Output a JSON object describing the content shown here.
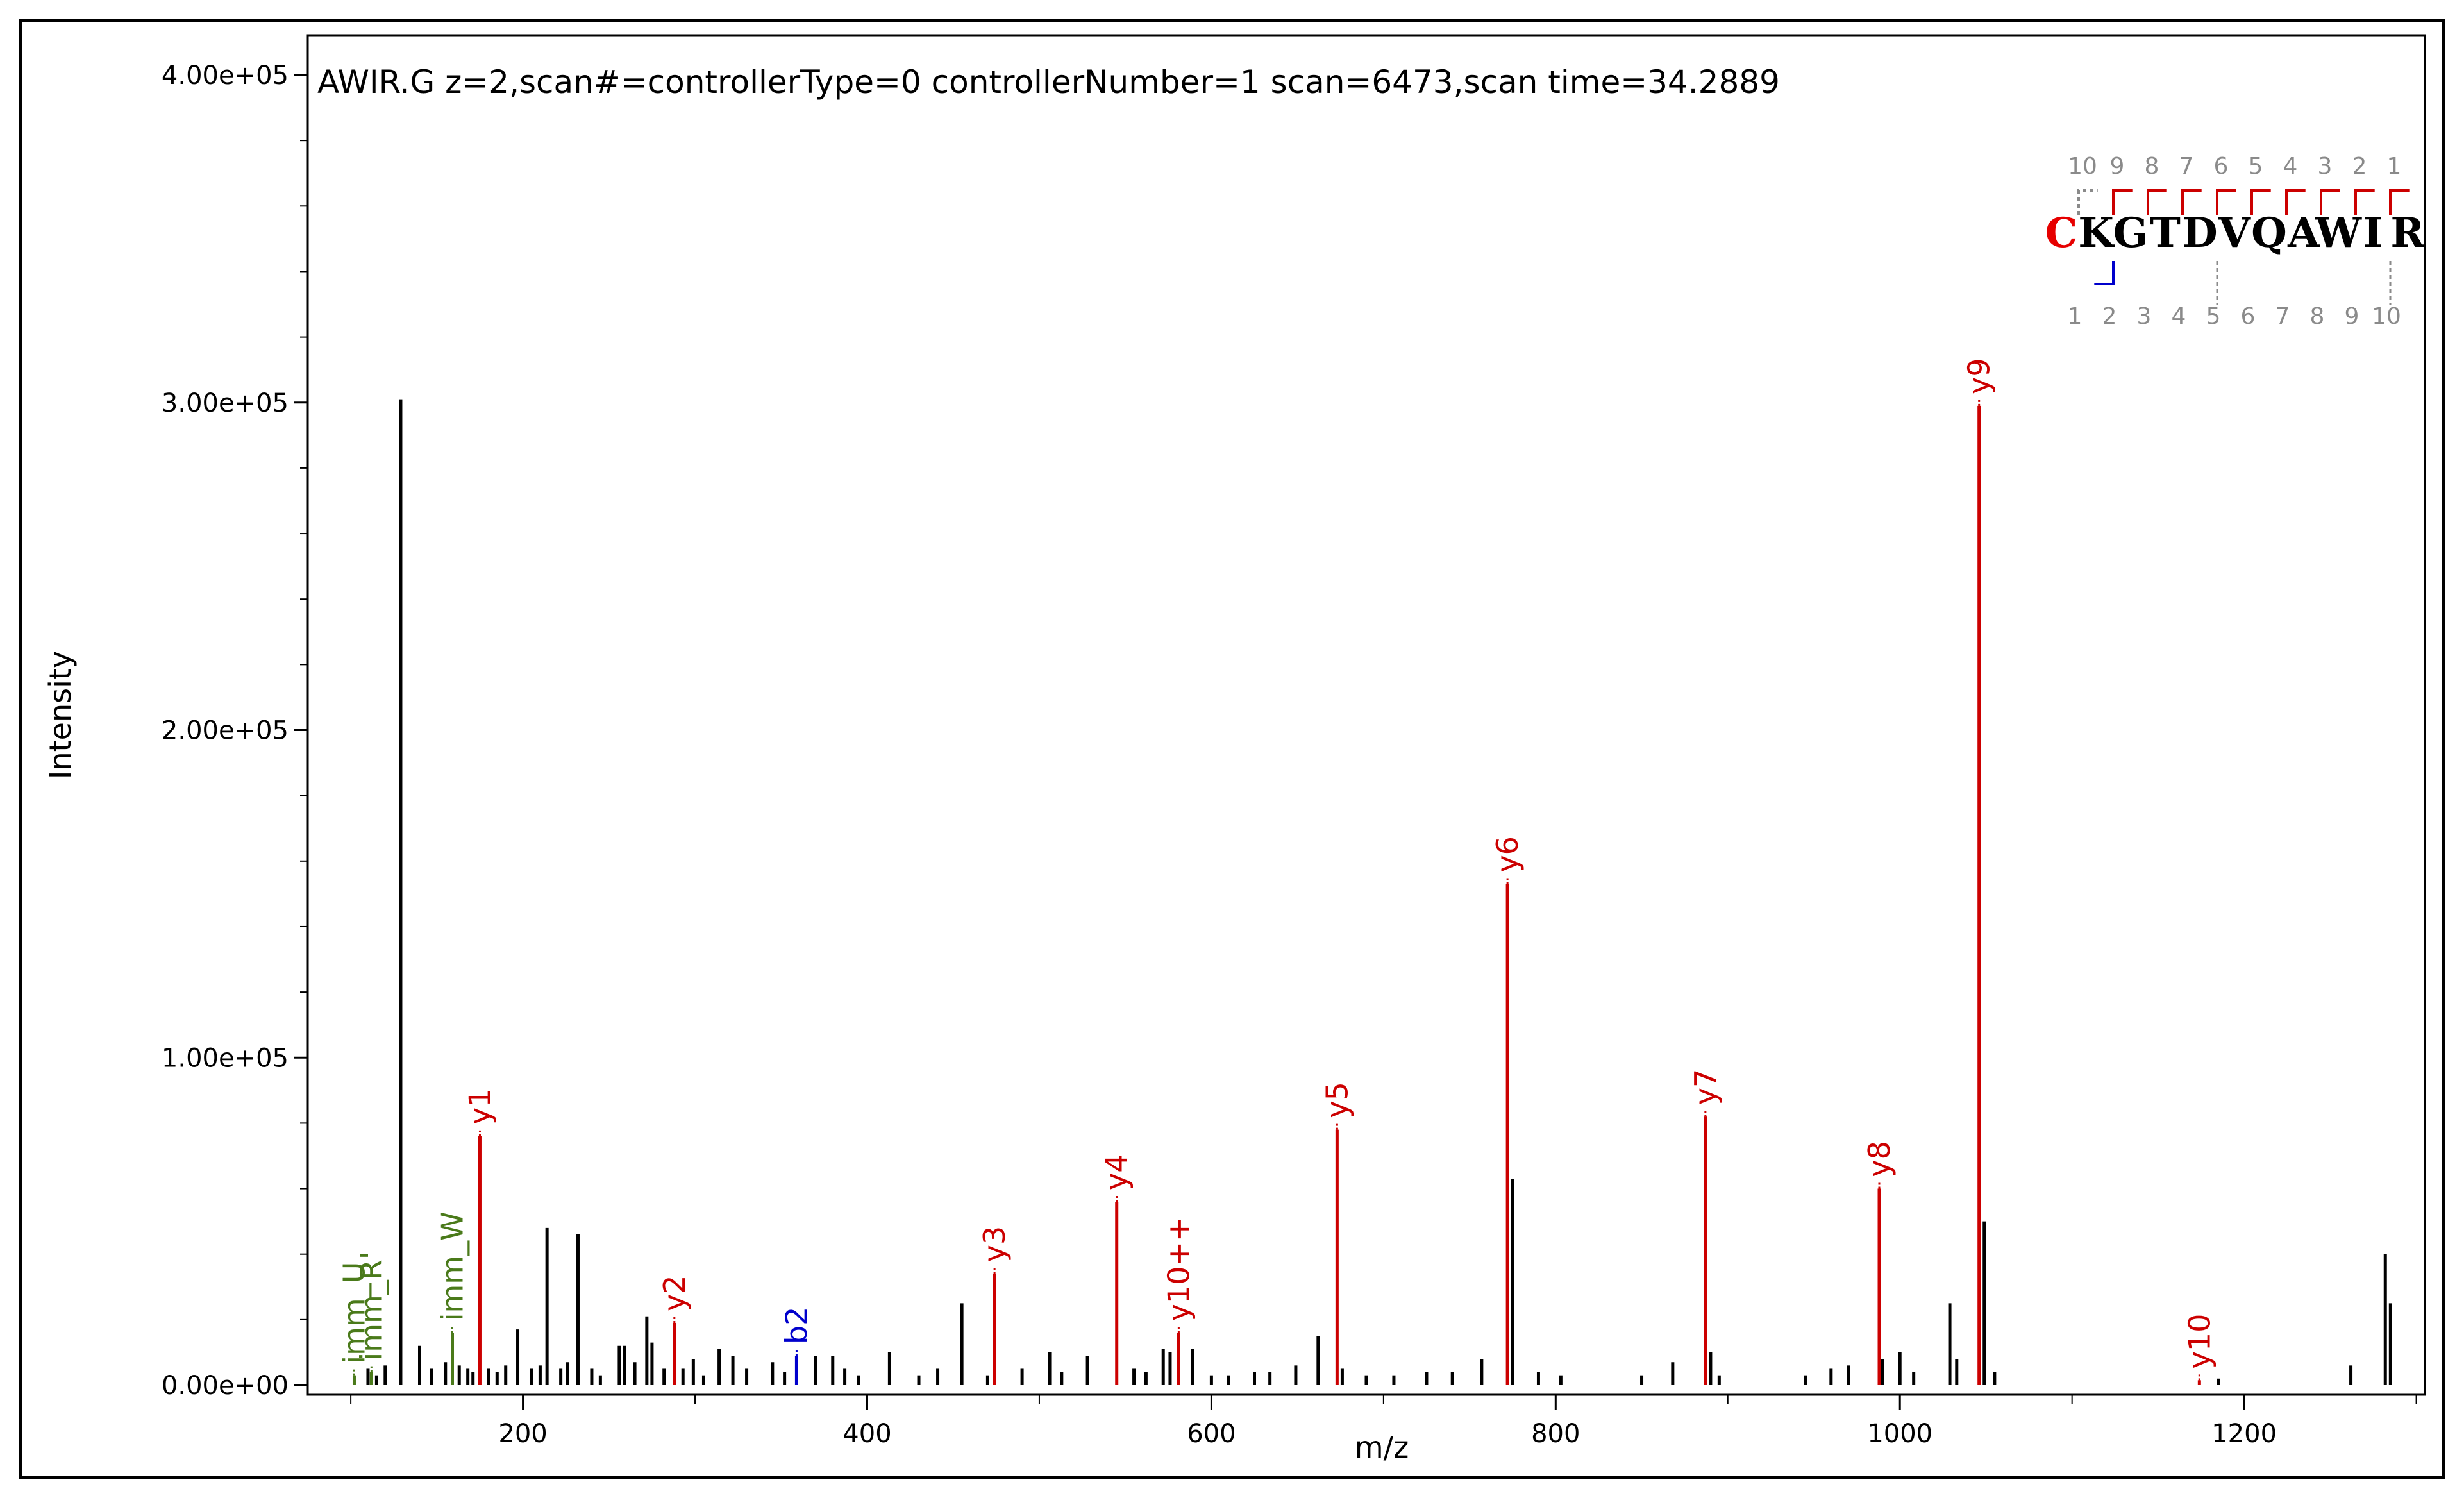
{
  "chart_data": {
    "type": "bar",
    "title": "AWIR.G z=2,scan#=controllerType=0 controllerNumber=1 scan=6473,scan time=34.2889",
    "xlabel": "m/z",
    "ylabel": "Intensity",
    "xlim": [
      75,
      1305
    ],
    "ylim": [
      0,
      400000
    ],
    "x_ticks": [
      {
        "value": 200,
        "label": "200"
      },
      {
        "value": 400,
        "label": "400"
      },
      {
        "value": 600,
        "label": "600"
      },
      {
        "value": 800,
        "label": "800"
      },
      {
        "value": 1000,
        "label": "1000"
      },
      {
        "value": 1200,
        "label": "1200"
      }
    ],
    "y_ticks": [
      {
        "value": 0,
        "label": "0.00e+00"
      },
      {
        "value": 100000,
        "label": "1.00e+05"
      },
      {
        "value": 200000,
        "label": "2.00e+05"
      },
      {
        "value": 300000,
        "label": "3.00e+05"
      },
      {
        "value": 400000,
        "label": "4.00e+05"
      }
    ],
    "colors": {
      "y_ion": "#cc0000",
      "b_ion": "#0000cc",
      "immonium": "#4a7a1a",
      "unannotated": "#000000",
      "sequence_n_term": "#e60000",
      "sequence_dim": "#8a8a8a"
    },
    "annotated_peaks": [
      {
        "mz": 102,
        "intensity": 3000,
        "label": "imm_U",
        "ion": "immonium"
      },
      {
        "mz": 112,
        "intensity": 4000,
        "label": "imm_R'",
        "ion": "immonium"
      },
      {
        "mz": 159,
        "intensity": 16000,
        "label": "imm_W",
        "ion": "immonium"
      },
      {
        "mz": 175,
        "intensity": 76000,
        "label": "y1",
        "ion": "y"
      },
      {
        "mz": 288,
        "intensity": 19000,
        "label": "y2",
        "ion": "y"
      },
      {
        "mz": 359,
        "intensity": 9000,
        "label": "b2",
        "ion": "b"
      },
      {
        "mz": 474,
        "intensity": 34000,
        "label": "y3",
        "ion": "y"
      },
      {
        "mz": 545,
        "intensity": 56000,
        "label": "y4",
        "ion": "y"
      },
      {
        "mz": 581,
        "intensity": 16000,
        "label": "y10++",
        "ion": "y"
      },
      {
        "mz": 673,
        "intensity": 78000,
        "label": "y5",
        "ion": "y"
      },
      {
        "mz": 772,
        "intensity": 153000,
        "label": "y6",
        "ion": "y"
      },
      {
        "mz": 887,
        "intensity": 82000,
        "label": "y7",
        "ion": "y"
      },
      {
        "mz": 988,
        "intensity": 60000,
        "label": "y8",
        "ion": "y"
      },
      {
        "mz": 1046,
        "intensity": 299000,
        "label": "y9",
        "ion": "y"
      },
      {
        "mz": 1174,
        "intensity": 1500,
        "label": "y10",
        "ion": "y"
      }
    ],
    "unannotated_peaks": [
      {
        "mz": 110,
        "intensity": 5000
      },
      {
        "mz": 115,
        "intensity": 3000
      },
      {
        "mz": 120,
        "intensity": 6000
      },
      {
        "mz": 129,
        "intensity": 301000
      },
      {
        "mz": 140,
        "intensity": 12000
      },
      {
        "mz": 147,
        "intensity": 5000
      },
      {
        "mz": 155,
        "intensity": 7000
      },
      {
        "mz": 163,
        "intensity": 6000
      },
      {
        "mz": 168,
        "intensity": 5000
      },
      {
        "mz": 171,
        "intensity": 4000
      },
      {
        "mz": 180,
        "intensity": 5000
      },
      {
        "mz": 185,
        "intensity": 4000
      },
      {
        "mz": 190,
        "intensity": 6000
      },
      {
        "mz": 197,
        "intensity": 17000
      },
      {
        "mz": 205,
        "intensity": 5000
      },
      {
        "mz": 210,
        "intensity": 6000
      },
      {
        "mz": 214,
        "intensity": 48000
      },
      {
        "mz": 222,
        "intensity": 5000
      },
      {
        "mz": 226,
        "intensity": 7000
      },
      {
        "mz": 232,
        "intensity": 46000
      },
      {
        "mz": 240,
        "intensity": 5000
      },
      {
        "mz": 245,
        "intensity": 3000
      },
      {
        "mz": 256,
        "intensity": 12000
      },
      {
        "mz": 259,
        "intensity": 12000
      },
      {
        "mz": 265,
        "intensity": 7000
      },
      {
        "mz": 272,
        "intensity": 21000
      },
      {
        "mz": 275,
        "intensity": 13000
      },
      {
        "mz": 282,
        "intensity": 5000
      },
      {
        "mz": 293,
        "intensity": 5000
      },
      {
        "mz": 299,
        "intensity": 8000
      },
      {
        "mz": 305,
        "intensity": 3000
      },
      {
        "mz": 314,
        "intensity": 11000
      },
      {
        "mz": 322,
        "intensity": 9000
      },
      {
        "mz": 330,
        "intensity": 5000
      },
      {
        "mz": 345,
        "intensity": 7000
      },
      {
        "mz": 352,
        "intensity": 4000
      },
      {
        "mz": 370,
        "intensity": 9000
      },
      {
        "mz": 380,
        "intensity": 9000
      },
      {
        "mz": 387,
        "intensity": 5000
      },
      {
        "mz": 395,
        "intensity": 3000
      },
      {
        "mz": 413,
        "intensity": 10000
      },
      {
        "mz": 430,
        "intensity": 3000
      },
      {
        "mz": 441,
        "intensity": 5000
      },
      {
        "mz": 455,
        "intensity": 25000
      },
      {
        "mz": 470,
        "intensity": 3000
      },
      {
        "mz": 490,
        "intensity": 5000
      },
      {
        "mz": 506,
        "intensity": 10000
      },
      {
        "mz": 513,
        "intensity": 4000
      },
      {
        "mz": 528,
        "intensity": 9000
      },
      {
        "mz": 555,
        "intensity": 5000
      },
      {
        "mz": 562,
        "intensity": 4000
      },
      {
        "mz": 572,
        "intensity": 11000
      },
      {
        "mz": 576,
        "intensity": 10000
      },
      {
        "mz": 589,
        "intensity": 11000
      },
      {
        "mz": 600,
        "intensity": 3000
      },
      {
        "mz": 610,
        "intensity": 3000
      },
      {
        "mz": 625,
        "intensity": 4000
      },
      {
        "mz": 634,
        "intensity": 4000
      },
      {
        "mz": 649,
        "intensity": 6000
      },
      {
        "mz": 662,
        "intensity": 15000
      },
      {
        "mz": 676,
        "intensity": 5000
      },
      {
        "mz": 690,
        "intensity": 3000
      },
      {
        "mz": 706,
        "intensity": 3000
      },
      {
        "mz": 725,
        "intensity": 4000
      },
      {
        "mz": 740,
        "intensity": 4000
      },
      {
        "mz": 757,
        "intensity": 8000
      },
      {
        "mz": 775,
        "intensity": 63000
      },
      {
        "mz": 790,
        "intensity": 4000
      },
      {
        "mz": 803,
        "intensity": 3000
      },
      {
        "mz": 850,
        "intensity": 3000
      },
      {
        "mz": 868,
        "intensity": 7000
      },
      {
        "mz": 890,
        "intensity": 10000
      },
      {
        "mz": 895,
        "intensity": 3000
      },
      {
        "mz": 945,
        "intensity": 3000
      },
      {
        "mz": 960,
        "intensity": 5000
      },
      {
        "mz": 970,
        "intensity": 6000
      },
      {
        "mz": 990,
        "intensity": 8000
      },
      {
        "mz": 1000,
        "intensity": 10000
      },
      {
        "mz": 1008,
        "intensity": 4000
      },
      {
        "mz": 1029,
        "intensity": 25000
      },
      {
        "mz": 1033,
        "intensity": 8000
      },
      {
        "mz": 1049,
        "intensity": 50000
      },
      {
        "mz": 1055,
        "intensity": 4000
      },
      {
        "mz": 1185,
        "intensity": 2000
      },
      {
        "mz": 1262,
        "intensity": 6000
      },
      {
        "mz": 1282,
        "intensity": 40000
      },
      {
        "mz": 1285,
        "intensity": 25000
      }
    ]
  },
  "sequence_panel": {
    "residues": [
      "C",
      "K",
      "G",
      "T",
      "D",
      "V",
      "Q",
      "A",
      "W",
      "I",
      "R"
    ],
    "top_numbers": [
      "10",
      "9",
      "8",
      "7",
      "6",
      "5",
      "4",
      "3",
      "2",
      "1"
    ],
    "bottom_numbers": [
      "1",
      "2",
      "3",
      "4",
      "5",
      "6",
      "7",
      "8",
      "9",
      "10"
    ],
    "y_matched_after_index": [
      1,
      2,
      3,
      4,
      5,
      6,
      7,
      8,
      9
    ],
    "b_matched_after_index": [
      1
    ]
  }
}
